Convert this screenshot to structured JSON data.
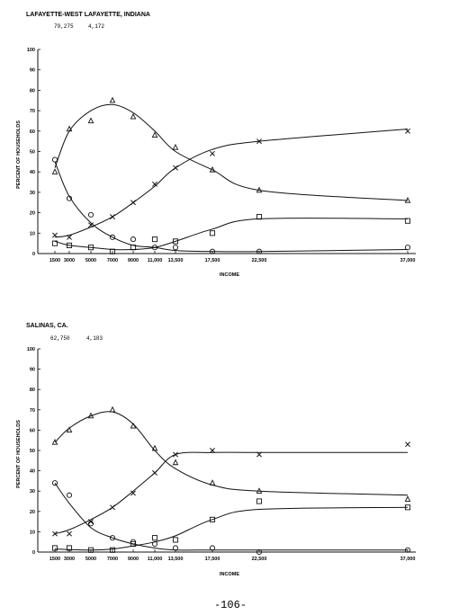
{
  "page_number": "-106-",
  "chart_data": [
    {
      "type": "line",
      "title": "LAFAYETTE-WEST LAFAYETTE, INDIANA",
      "subtitle_values": [
        "79,275",
        "4,172"
      ],
      "xlabel": "INCOME",
      "ylabel": "PERCENT OF HOUSEHOLDS",
      "x_tick_labels": [
        "1500",
        "3000",
        "5000",
        "7000",
        "9000",
        "11,000",
        "13,500",
        "17,500",
        "22,500",
        "37,000"
      ],
      "x_tick_values": [
        1500,
        3000,
        5000,
        7000,
        9000,
        11000,
        13500,
        17500,
        22500,
        37000
      ],
      "ylim": [
        0,
        100
      ],
      "y_ticks": [
        0,
        10,
        20,
        30,
        40,
        50,
        60,
        70,
        80,
        90,
        100
      ],
      "series": [
        {
          "marker": "triangle",
          "points": [
            [
              1500,
              40
            ],
            [
              3000,
              61
            ],
            [
              5000,
              65
            ],
            [
              7000,
              75
            ],
            [
              9000,
              67
            ],
            [
              11000,
              58
            ],
            [
              13500,
              52
            ],
            [
              17500,
              41
            ],
            [
              22500,
              31
            ],
            [
              37000,
              26
            ]
          ],
          "curve": [
            [
              1500,
              42
            ],
            [
              3000,
              60
            ],
            [
              5000,
              70
            ],
            [
              7000,
              73
            ],
            [
              9000,
              69
            ],
            [
              11000,
              60
            ],
            [
              13500,
              50
            ],
            [
              17500,
              41
            ],
            [
              22500,
              31
            ],
            [
              37000,
              26
            ]
          ]
        },
        {
          "marker": "x",
          "points": [
            [
              1500,
              9
            ],
            [
              3000,
              8
            ],
            [
              5000,
              14
            ],
            [
              7000,
              18
            ],
            [
              9000,
              25
            ],
            [
              11000,
              34
            ],
            [
              13500,
              42
            ],
            [
              17500,
              49
            ],
            [
              22500,
              55
            ],
            [
              37000,
              60
            ]
          ],
          "curve": [
            [
              1500,
              8
            ],
            [
              3000,
              9
            ],
            [
              5000,
              13
            ],
            [
              7000,
              18
            ],
            [
              9000,
              25
            ],
            [
              11000,
              33
            ],
            [
              13500,
              42
            ],
            [
              17500,
              51
            ],
            [
              22500,
              55
            ],
            [
              37000,
              61
            ]
          ]
        },
        {
          "marker": "circle",
          "points": [
            [
              1500,
              46
            ],
            [
              3000,
              27
            ],
            [
              5000,
              19
            ],
            [
              7000,
              8
            ],
            [
              9000,
              7
            ],
            [
              11000,
              3
            ],
            [
              13500,
              3
            ],
            [
              17500,
              1
            ],
            [
              22500,
              1
            ],
            [
              37000,
              3
            ]
          ],
          "curve": [
            [
              1500,
              45
            ],
            [
              3000,
              28
            ],
            [
              5000,
              15
            ],
            [
              7000,
              8
            ],
            [
              9000,
              4
            ],
            [
              11000,
              3
            ],
            [
              13500,
              1.5
            ],
            [
              17500,
              1
            ],
            [
              22500,
              1
            ],
            [
              37000,
              2
            ]
          ]
        },
        {
          "marker": "square",
          "points": [
            [
              1500,
              5
            ],
            [
              3000,
              4
            ],
            [
              5000,
              3
            ],
            [
              7000,
              1
            ],
            [
              9000,
              3
            ],
            [
              11000,
              7
            ],
            [
              13500,
              6
            ],
            [
              17500,
              10
            ],
            [
              22500,
              18
            ],
            [
              37000,
              16
            ]
          ],
          "curve": [
            [
              1500,
              6
            ],
            [
              3000,
              4
            ],
            [
              5000,
              3
            ],
            [
              7000,
              2
            ],
            [
              9000,
              2
            ],
            [
              11000,
              3
            ],
            [
              13500,
              6
            ],
            [
              17500,
              12
            ],
            [
              22500,
              17
            ],
            [
              37000,
              17
            ]
          ]
        }
      ]
    },
    {
      "type": "line",
      "title": "SALINAS, CA.",
      "subtitle_values": [
        "62,750",
        "4,183"
      ],
      "xlabel": "INCOME",
      "ylabel": "PERCENT OF HOUSEHOLDS",
      "x_tick_labels": [
        "1500",
        "3000",
        "5000",
        "7000",
        "9000",
        "11,000",
        "13,500",
        "17,500",
        "22,500",
        "37,000"
      ],
      "x_tick_values": [
        1500,
        3000,
        5000,
        7000,
        9000,
        11000,
        13500,
        17500,
        22500,
        37000
      ],
      "ylim": [
        0,
        100
      ],
      "y_ticks": [
        0,
        10,
        20,
        30,
        40,
        50,
        60,
        70,
        80,
        90,
        100
      ],
      "series": [
        {
          "marker": "triangle",
          "points": [
            [
              1500,
              54
            ],
            [
              3000,
              60
            ],
            [
              5000,
              67
            ],
            [
              7000,
              70
            ],
            [
              9000,
              62
            ],
            [
              11000,
              51
            ],
            [
              13500,
              44
            ],
            [
              17500,
              34
            ],
            [
              22500,
              30
            ],
            [
              37000,
              26
            ]
          ],
          "curve": [
            [
              1500,
              54
            ],
            [
              3000,
              61
            ],
            [
              5000,
              67
            ],
            [
              7000,
              69
            ],
            [
              9000,
              63
            ],
            [
              11000,
              50
            ],
            [
              13500,
              41
            ],
            [
              17500,
              33
            ],
            [
              22500,
              30
            ],
            [
              37000,
              28
            ]
          ]
        },
        {
          "marker": "x",
          "points": [
            [
              1500,
              9
            ],
            [
              3000,
              9
            ],
            [
              5000,
              15
            ],
            [
              7000,
              22
            ],
            [
              9000,
              29
            ],
            [
              11000,
              39
            ],
            [
              13500,
              48
            ],
            [
              17500,
              50
            ],
            [
              22500,
              48
            ],
            [
              37000,
              53
            ]
          ],
          "curve": [
            [
              1500,
              9
            ],
            [
              3000,
              11
            ],
            [
              5000,
              16
            ],
            [
              7000,
              22
            ],
            [
              9000,
              30
            ],
            [
              11000,
              39
            ],
            [
              13500,
              48
            ],
            [
              17500,
              49
            ],
            [
              22500,
              49
            ],
            [
              37000,
              49
            ]
          ]
        },
        {
          "marker": "circle",
          "points": [
            [
              1500,
              34
            ],
            [
              3000,
              28
            ],
            [
              5000,
              14
            ],
            [
              7000,
              7
            ],
            [
              9000,
              5
            ],
            [
              11000,
              4
            ],
            [
              13500,
              2
            ],
            [
              17500,
              2
            ],
            [
              22500,
              0
            ],
            [
              37000,
              1
            ]
          ],
          "curve": [
            [
              1500,
              34
            ],
            [
              3000,
              24
            ],
            [
              5000,
              12
            ],
            [
              7000,
              7
            ],
            [
              9000,
              4
            ],
            [
              11000,
              2
            ],
            [
              13500,
              1
            ],
            [
              17500,
              1
            ],
            [
              22500,
              1
            ],
            [
              37000,
              1
            ]
          ]
        },
        {
          "marker": "square",
          "points": [
            [
              1500,
              2
            ],
            [
              3000,
              2
            ],
            [
              5000,
              1
            ],
            [
              7000,
              1
            ],
            [
              9000,
              4
            ],
            [
              11000,
              7
            ],
            [
              13500,
              6
            ],
            [
              17500,
              16
            ],
            [
              22500,
              25
            ],
            [
              37000,
              22
            ]
          ],
          "curve": [
            [
              1500,
              1.5
            ],
            [
              3000,
              1.2
            ],
            [
              5000,
              1
            ],
            [
              7000,
              1.5
            ],
            [
              9000,
              3
            ],
            [
              11000,
              5
            ],
            [
              13500,
              8
            ],
            [
              17500,
              16
            ],
            [
              22500,
              21
            ],
            [
              37000,
              22
            ]
          ]
        }
      ]
    }
  ]
}
